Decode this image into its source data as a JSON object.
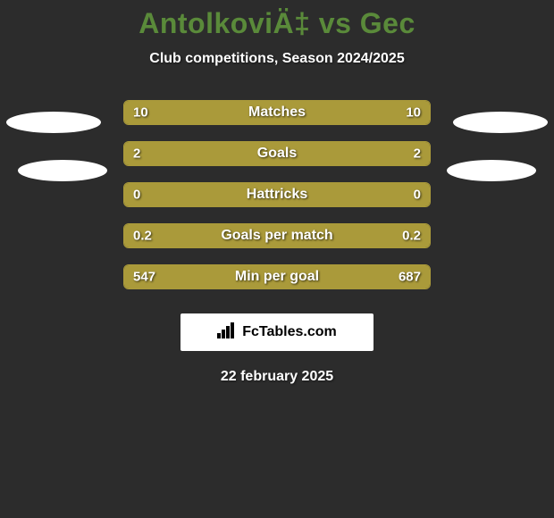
{
  "title": "AntolkoviÄ‡ vs Gec",
  "subtitle": "Club competitions, Season 2024/2025",
  "date": "22 february 2025",
  "branding": "FcTables.com",
  "colors": {
    "background": "#2c2c2c",
    "title_color": "#5a8a3a",
    "bar_fill": "#aa9a3a",
    "text": "#ffffff",
    "oval": "#ffffff"
  },
  "stats": [
    {
      "label": "Matches",
      "left_value": "10",
      "right_value": "10",
      "left_pct": 50,
      "right_pct": 50
    },
    {
      "label": "Goals",
      "left_value": "2",
      "right_value": "2",
      "left_pct": 50,
      "right_pct": 50
    },
    {
      "label": "Hattricks",
      "left_value": "0",
      "right_value": "0",
      "left_pct": 50,
      "right_pct": 50
    },
    {
      "label": "Goals per match",
      "left_value": "0.2",
      "right_value": "0.2",
      "left_pct": 50,
      "right_pct": 50
    },
    {
      "label": "Min per goal",
      "left_value": "547",
      "right_value": "687",
      "left_pct": 55.6,
      "right_pct": 44.4
    }
  ]
}
